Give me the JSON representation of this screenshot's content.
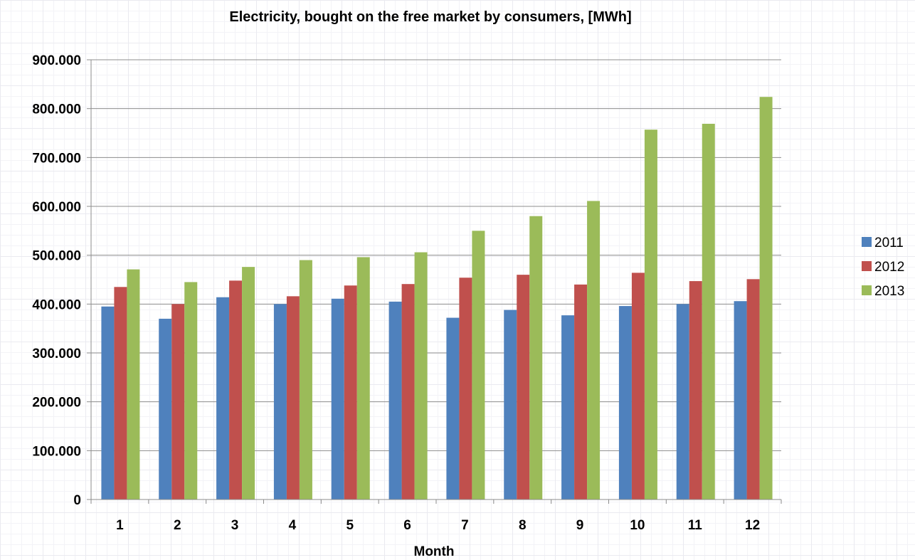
{
  "chart_data": {
    "type": "bar",
    "title": "Electricity, bought on the free market by consumers, [MWh]",
    "xlabel": "Month",
    "ylabel": "",
    "categories": [
      "1",
      "2",
      "3",
      "4",
      "5",
      "6",
      "7",
      "8",
      "9",
      "10",
      "11",
      "12"
    ],
    "ylim": [
      0,
      900000
    ],
    "yticks": [
      0,
      100000,
      200000,
      300000,
      400000,
      500000,
      600000,
      700000,
      800000,
      900000
    ],
    "ytick_labels": [
      "0",
      "100.000",
      "200.000",
      "300.000",
      "400.000",
      "500.000",
      "600.000",
      "700.000",
      "800.000",
      "900.000"
    ],
    "grid": true,
    "legend_position": "right",
    "series": [
      {
        "name": "2011",
        "color": "#4f81bd",
        "values": [
          395000,
          370000,
          414000,
          400000,
          411000,
          405000,
          372000,
          388000,
          377000,
          396000,
          400000,
          406000
        ]
      },
      {
        "name": "2012",
        "color": "#c0504d",
        "values": [
          435000,
          400000,
          448000,
          416000,
          438000,
          441000,
          454000,
          460000,
          440000,
          464000,
          447000,
          451000
        ]
      },
      {
        "name": "2013",
        "color": "#9bbb59",
        "values": [
          471000,
          445000,
          476000,
          490000,
          496000,
          506000,
          550000,
          580000,
          611000,
          757000,
          769000,
          824000
        ]
      }
    ]
  }
}
